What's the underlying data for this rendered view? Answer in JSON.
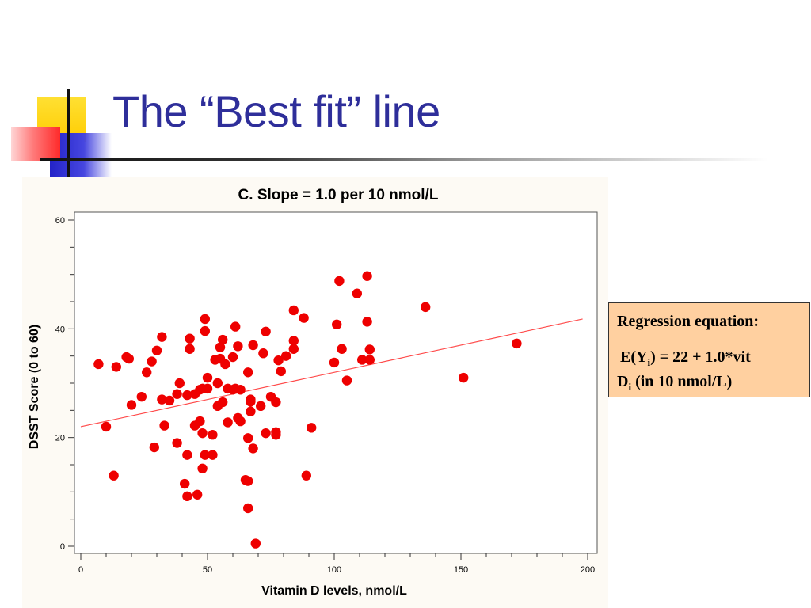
{
  "slide": {
    "title": "The “Best fit” line"
  },
  "equation_box": {
    "heading": "Regression equation:",
    "line1_prefix": "E(Y",
    "line1_sub": "i",
    "line1_suffix": ") = 22 + 1.0*vit",
    "line2_prefix": "D",
    "line2_sub": "i",
    "line2_suffix": " (in 10 nmol/L)"
  },
  "colors": {
    "title": "#2e2e9a",
    "points": "#ee0000",
    "fit_line": "#ff4a4a",
    "box_fill": "#ffd0a0"
  },
  "chart_data": {
    "type": "scatter",
    "title": "C. Slope = 1.0 per 10 nmol/L",
    "xlabel": "Vitamin D levels, nmol/L",
    "ylabel": "DSST Score (0 to 60)",
    "xlim": [
      0,
      200
    ],
    "ylim": [
      0,
      60
    ],
    "xticks": [
      0,
      50,
      100,
      150,
      200
    ],
    "yticks": [
      0,
      20,
      40,
      60
    ],
    "grid": false,
    "fit_line": {
      "intercept": 22,
      "slope": 0.1,
      "x_start": 0,
      "x_end": 198
    },
    "points": [
      [
        7,
        33.5
      ],
      [
        10,
        22
      ],
      [
        13,
        13
      ],
      [
        14,
        33
      ],
      [
        18,
        34.8
      ],
      [
        19,
        34.5
      ],
      [
        20,
        26
      ],
      [
        24,
        27.5
      ],
      [
        26,
        32
      ],
      [
        28,
        34
      ],
      [
        29,
        18.2
      ],
      [
        30,
        36
      ],
      [
        32,
        27
      ],
      [
        32,
        38.5
      ],
      [
        33,
        22.2
      ],
      [
        35,
        26.8
      ],
      [
        38,
        28
      ],
      [
        38,
        19
      ],
      [
        39,
        30
      ],
      [
        41,
        11.5
      ],
      [
        42,
        9.2
      ],
      [
        42,
        16.8
      ],
      [
        42,
        27.8
      ],
      [
        43,
        36.3
      ],
      [
        43,
        38.2
      ],
      [
        45,
        28
      ],
      [
        45,
        22.2
      ],
      [
        46,
        9.5
      ],
      [
        47,
        28.8
      ],
      [
        47,
        23
      ],
      [
        48,
        14.3
      ],
      [
        48,
        20.8
      ],
      [
        48,
        29
      ],
      [
        49,
        16.8
      ],
      [
        49,
        39.6
      ],
      [
        49,
        41.8
      ],
      [
        50,
        31
      ],
      [
        50,
        29
      ],
      [
        52,
        16.8
      ],
      [
        52,
        20.5
      ],
      [
        53,
        34.3
      ],
      [
        54,
        30
      ],
      [
        54,
        25.8
      ],
      [
        55,
        34.5
      ],
      [
        55,
        36.6
      ],
      [
        56,
        26.5
      ],
      [
        56,
        38
      ],
      [
        57,
        33.5
      ],
      [
        58,
        22.8
      ],
      [
        58,
        29
      ],
      [
        60,
        28.8
      ],
      [
        60,
        34.8
      ],
      [
        61,
        29
      ],
      [
        61,
        40.4
      ],
      [
        62,
        36.8
      ],
      [
        62,
        23.6
      ],
      [
        63,
        23
      ],
      [
        63,
        28.8
      ],
      [
        65,
        12.2
      ],
      [
        66,
        12
      ],
      [
        66,
        19.9
      ],
      [
        66,
        7
      ],
      [
        66,
        32
      ],
      [
        67,
        24.8
      ],
      [
        67,
        26.6
      ],
      [
        67,
        27
      ],
      [
        68,
        37
      ],
      [
        68,
        18
      ],
      [
        69,
        0.5
      ],
      [
        71,
        25.8
      ],
      [
        72,
        35.5
      ],
      [
        73,
        20.8
      ],
      [
        73,
        39.5
      ],
      [
        75,
        27.5
      ],
      [
        77,
        26.5
      ],
      [
        77,
        20.5
      ],
      [
        77,
        21
      ],
      [
        78,
        34.2
      ],
      [
        79,
        32.2
      ],
      [
        81,
        35
      ],
      [
        84,
        36.3
      ],
      [
        84,
        37.8
      ],
      [
        84,
        43.4
      ],
      [
        88,
        42
      ],
      [
        89,
        13
      ],
      [
        91,
        21.8
      ],
      [
        100,
        33.8
      ],
      [
        101,
        40.8
      ],
      [
        102,
        48.8
      ],
      [
        103,
        36.3
      ],
      [
        105,
        30.5
      ],
      [
        109,
        46.5
      ],
      [
        111,
        34.3
      ],
      [
        113,
        49.7
      ],
      [
        113,
        41.3
      ],
      [
        114,
        36.2
      ],
      [
        114,
        34.3
      ],
      [
        136,
        44
      ],
      [
        151,
        31
      ],
      [
        172,
        37.3
      ]
    ]
  }
}
